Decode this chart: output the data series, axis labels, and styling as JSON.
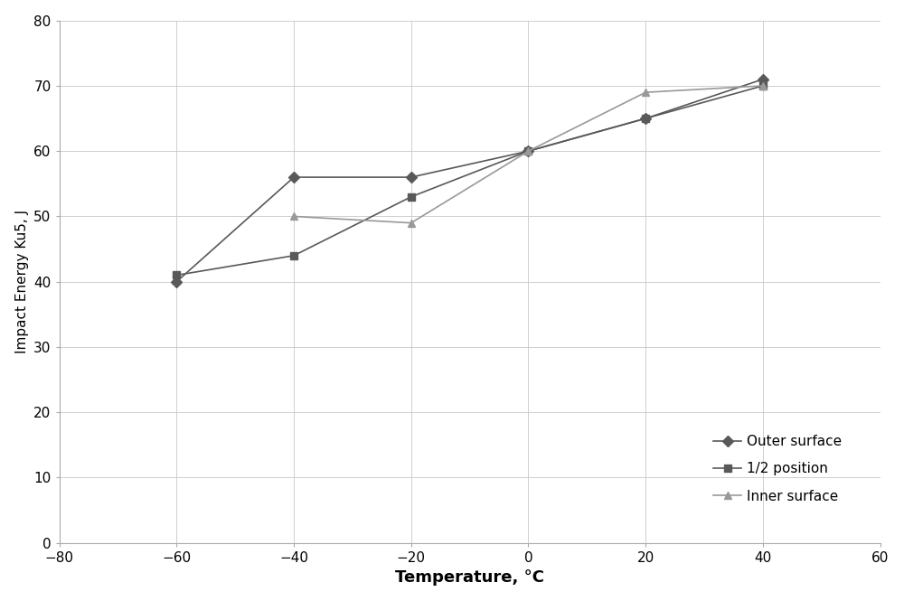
{
  "series": [
    {
      "label": "Outer surface",
      "x": [
        -60,
        -40,
        -20,
        0,
        20,
        40
      ],
      "y": [
        40,
        56,
        56,
        60,
        65,
        71
      ],
      "color": "#595959",
      "marker": "D",
      "markersize": 6,
      "linestyle": "-",
      "linewidth": 1.2
    },
    {
      "label": "1/2 position",
      "x": [
        -60,
        -40,
        -20,
        0,
        20,
        40
      ],
      "y": [
        41,
        44,
        53,
        60,
        65,
        70
      ],
      "color": "#595959",
      "marker": "s",
      "markersize": 6,
      "linestyle": "-",
      "linewidth": 1.2
    },
    {
      "label": "Inner surface",
      "x": [
        -40,
        -20,
        0,
        20,
        40
      ],
      "y": [
        50,
        49,
        60,
        69,
        70
      ],
      "color": "#999999",
      "marker": "^",
      "markersize": 6,
      "linestyle": "-",
      "linewidth": 1.2
    }
  ],
  "xlabel": "Temperature, °C",
  "ylabel": "Impact Energy Ku5, J",
  "xlim": [
    -80,
    60
  ],
  "ylim": [
    0,
    80
  ],
  "xticks": [
    -80,
    -60,
    -40,
    -20,
    0,
    20,
    40,
    60
  ],
  "yticks": [
    0,
    10,
    20,
    30,
    40,
    50,
    60,
    70,
    80
  ],
  "grid_color": "#c8c8c8",
  "grid_linestyle": "-",
  "grid_linewidth": 0.6,
  "background_color": "#ffffff",
  "legend_fontsize": 11,
  "xlabel_fontsize": 13,
  "ylabel_fontsize": 11,
  "tick_fontsize": 11,
  "spine_color": "#aaaaaa"
}
